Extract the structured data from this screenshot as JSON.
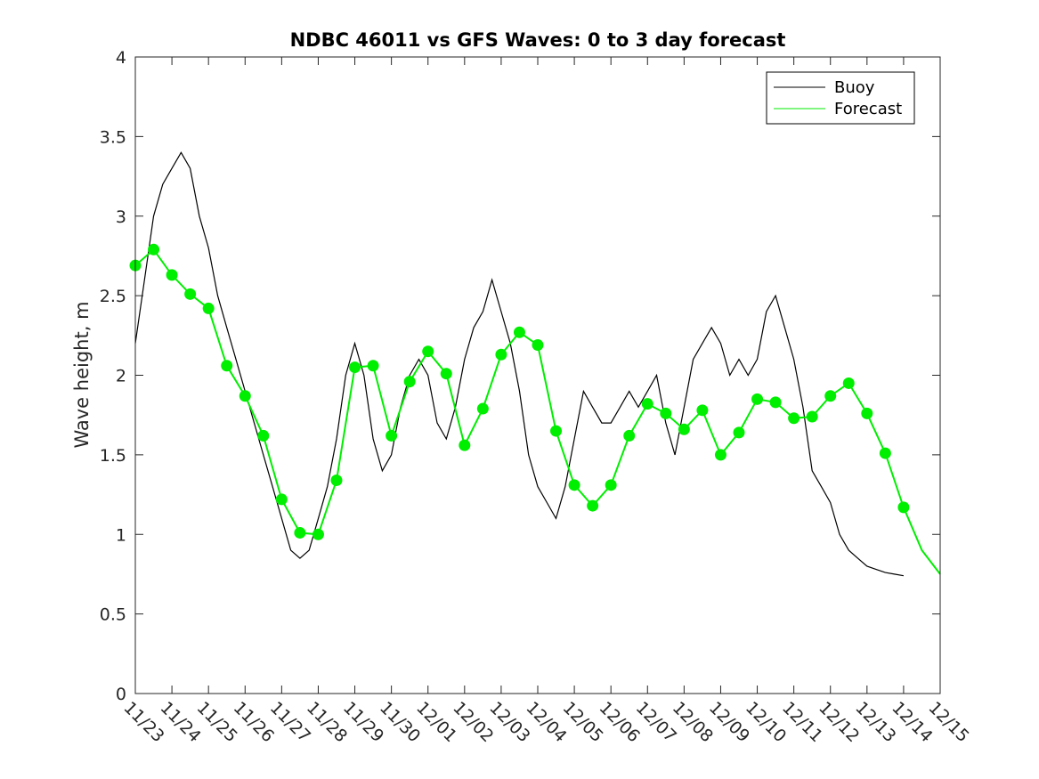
{
  "chart_data": {
    "type": "line",
    "title": "NDBC 46011 vs GFS Waves: 0 to 3 day forecast",
    "xlabel": "",
    "ylabel": "Wave height, m",
    "xlim": [
      0,
      22
    ],
    "ylim": [
      0,
      4
    ],
    "y_ticks": [
      0,
      0.5,
      1,
      1.5,
      2,
      2.5,
      3,
      3.5,
      4
    ],
    "y_tick_labels": [
      "0",
      "0.5",
      "1",
      "1.5",
      "2",
      "2.5",
      "3",
      "3.5",
      "4"
    ],
    "x_tick_labels": [
      "11/23",
      "11/24",
      "11/25",
      "11/26",
      "11/27",
      "11/28",
      "11/29",
      "11/30",
      "12/01",
      "12/02",
      "12/03",
      "12/04",
      "12/05",
      "12/06",
      "12/07",
      "12/08",
      "12/09",
      "12/10",
      "12/11",
      "12/12",
      "12/13",
      "12/14",
      "12/15"
    ],
    "x_units": "days since 11/23",
    "legend": {
      "location": "top-right",
      "entries": [
        "Buoy",
        "Forecast"
      ]
    },
    "colors": {
      "buoy": "#000000",
      "forecast": "#00ee00"
    },
    "series": [
      {
        "name": "Buoy",
        "x": [
          0,
          0.25,
          0.5,
          0.75,
          1,
          1.25,
          1.5,
          1.75,
          2,
          2.25,
          2.5,
          2.75,
          3,
          3.25,
          3.5,
          3.75,
          4,
          4.25,
          4.5,
          4.75,
          5,
          5.25,
          5.5,
          5.75,
          6,
          6.25,
          6.5,
          6.75,
          7,
          7.25,
          7.5,
          7.75,
          8,
          8.25,
          8.5,
          8.75,
          9,
          9.25,
          9.5,
          9.75,
          10,
          10.25,
          10.5,
          10.75,
          11,
          11.25,
          11.5,
          11.75,
          12,
          12.25,
          12.5,
          12.75,
          13,
          13.25,
          13.5,
          13.75,
          14,
          14.25,
          14.5,
          14.75,
          15,
          15.25,
          15.5,
          15.75,
          16,
          16.25,
          16.5,
          16.75,
          17,
          17.25,
          17.5,
          17.75,
          18,
          18.25,
          18.5,
          18.75,
          19,
          19.25,
          19.5,
          19.75,
          20,
          20.25,
          20.5,
          20.75,
          21
        ],
        "values": [
          2.2,
          2.6,
          3.0,
          3.2,
          3.3,
          3.4,
          3.3,
          3.0,
          2.8,
          2.5,
          2.3,
          2.1,
          1.9,
          1.7,
          1.5,
          1.3,
          1.1,
          0.9,
          0.85,
          0.9,
          1.1,
          1.3,
          1.6,
          2.0,
          2.2,
          2.0,
          1.6,
          1.4,
          1.5,
          1.8,
          2.0,
          2.1,
          2.0,
          1.7,
          1.6,
          1.8,
          2.1,
          2.3,
          2.4,
          2.6,
          2.4,
          2.2,
          1.9,
          1.5,
          1.3,
          1.2,
          1.1,
          1.3,
          1.6,
          1.9,
          1.8,
          1.7,
          1.7,
          1.8,
          1.9,
          1.8,
          1.9,
          2.0,
          1.7,
          1.5,
          1.8,
          2.1,
          2.2,
          2.3,
          2.2,
          2.0,
          2.1,
          2.0,
          2.1,
          2.4,
          2.5,
          2.3,
          2.1,
          1.8,
          1.4,
          1.3,
          1.2,
          1.0,
          0.9,
          0.85,
          0.8,
          0.78,
          0.76,
          0.75,
          0.74
        ]
      },
      {
        "name": "Forecast",
        "x": [
          0,
          0.5,
          1,
          1.5,
          2,
          2.5,
          3,
          3.5,
          4,
          4.5,
          5,
          5.5,
          6,
          6.5,
          7,
          7.5,
          8,
          8.5,
          9,
          9.5,
          10,
          10.5,
          11,
          11.5,
          12,
          12.5,
          13,
          13.5,
          14,
          14.5,
          15,
          15.5,
          16,
          16.5,
          17,
          17.5,
          18,
          18.5,
          19,
          19.5,
          20,
          20.5,
          21,
          21.5,
          22
        ],
        "values": [
          2.69,
          2.79,
          2.63,
          2.51,
          2.42,
          2.06,
          1.87,
          1.62,
          1.22,
          1.01,
          1.0,
          1.34,
          2.05,
          2.06,
          1.62,
          1.96,
          2.15,
          2.01,
          1.56,
          1.79,
          2.13,
          2.27,
          2.19,
          1.65,
          1.31,
          1.18,
          1.31,
          1.62,
          1.82,
          1.76,
          1.66,
          1.78,
          1.5,
          1.64,
          1.85,
          1.83,
          1.73,
          1.74,
          1.87,
          1.95,
          1.76,
          1.51,
          1.17,
          0.9,
          0.75
        ]
      }
    ],
    "forecast_markers": {
      "x": [
        0,
        0.5,
        1,
        1.5,
        2,
        2.5,
        3,
        3.5,
        4,
        4.5,
        5,
        5.5,
        6,
        6.5,
        7,
        7.5,
        8,
        8.5,
        9,
        9.5,
        10,
        10.5,
        11,
        11.5,
        12,
        12.5,
        13,
        13.5,
        14,
        14.5,
        15,
        15.5,
        16,
        16.5,
        17,
        17.5,
        18,
        18.5,
        19,
        19.5,
        20,
        20.5,
        21
      ],
      "values": [
        2.69,
        2.79,
        2.63,
        2.51,
        2.42,
        2.06,
        1.87,
        1.62,
        1.22,
        1.01,
        1.0,
        1.34,
        2.05,
        2.06,
        1.62,
        1.96,
        2.15,
        2.01,
        1.56,
        1.79,
        2.13,
        2.27,
        2.19,
        1.65,
        1.31,
        1.18,
        1.31,
        1.62,
        1.82,
        1.76,
        1.66,
        1.78,
        1.5,
        1.64,
        1.85,
        1.83,
        1.73,
        1.74,
        1.87,
        1.95,
        1.76,
        1.51,
        1.17
      ]
    }
  }
}
